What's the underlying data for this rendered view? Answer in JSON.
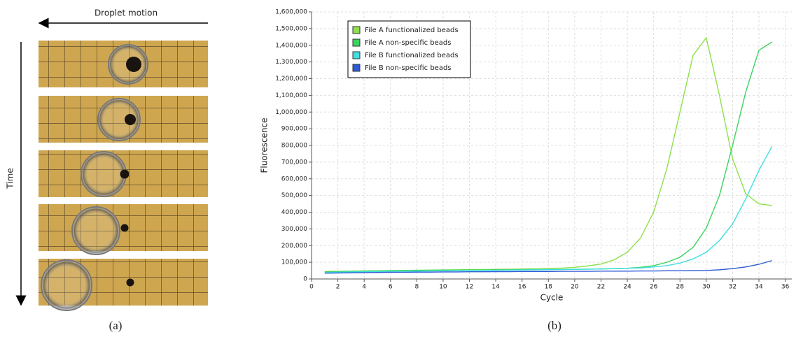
{
  "panel_a": {
    "motion_label": "Droplet motion",
    "time_label": "Time",
    "caption": "(a)"
  },
  "panel_b": {
    "caption": "(b)"
  },
  "chart_data": {
    "type": "line",
    "xlabel": "Cycle",
    "ylabel": "Fluorescence",
    "grid": true,
    "legend": "upper-left",
    "x": [
      1,
      2,
      3,
      4,
      5,
      6,
      7,
      8,
      9,
      10,
      11,
      12,
      13,
      14,
      15,
      16,
      17,
      18,
      19,
      20,
      21,
      22,
      23,
      24,
      25,
      26,
      27,
      28,
      29,
      30,
      31,
      32,
      33,
      34,
      35
    ],
    "xlim": [
      0,
      36.5
    ],
    "xticks": [
      0,
      2,
      4,
      6,
      8,
      10,
      12,
      14,
      16,
      18,
      20,
      22,
      24,
      26,
      28,
      30,
      32,
      34,
      36
    ],
    "ylim": [
      0,
      1600000
    ],
    "yticks": [
      {
        "value": 0,
        "label": "0"
      },
      {
        "value": 100000,
        "label": "100,000"
      },
      {
        "value": 200000,
        "label": "200,000"
      },
      {
        "value": 300000,
        "label": "300,000"
      },
      {
        "value": 400000,
        "label": "400,000"
      },
      {
        "value": 500000,
        "label": "500,000"
      },
      {
        "value": 600000,
        "label": "600,000"
      },
      {
        "value": 700000,
        "label": "700,000"
      },
      {
        "value": 800000,
        "label": "800,000"
      },
      {
        "value": 900000,
        "label": "900,000"
      },
      {
        "value": 1000000,
        "label": "1,000,000"
      },
      {
        "value": 1100000,
        "label": "1,100,000"
      },
      {
        "value": 1200000,
        "label": "1,200,000"
      },
      {
        "value": 1300000,
        "label": "1,300,000"
      },
      {
        "value": 1400000,
        "label": "1,400,000"
      },
      {
        "value": 1500000,
        "label": "1,500,000"
      },
      {
        "value": 1600000,
        "label": "1,600,000"
      }
    ],
    "series": [
      {
        "name": "File A functionalized beads",
        "color": "#8ee04c",
        "values": [
          45000,
          46000,
          47000,
          48000,
          49000,
          50000,
          51000,
          52000,
          53000,
          54000,
          55000,
          56000,
          57000,
          58000,
          59000,
          60000,
          61000,
          63000,
          65000,
          70000,
          78000,
          90000,
          115000,
          160000,
          245000,
          400000,
          660000,
          1000000,
          1340000,
          1445000,
          1100000,
          720000,
          510000,
          450000,
          440000
        ]
      },
      {
        "name": "File A non-specific beads",
        "color": "#3bd45e",
        "values": [
          42000,
          44000,
          46000,
          48000,
          49000,
          50000,
          51000,
          52000,
          52000,
          53000,
          53000,
          54000,
          54000,
          55000,
          55000,
          56000,
          56000,
          57000,
          57000,
          58000,
          59000,
          60000,
          62000,
          64000,
          70000,
          80000,
          100000,
          130000,
          190000,
          305000,
          500000,
          800000,
          1120000,
          1370000,
          1420000
        ]
      },
      {
        "name": "File B functionalized beads",
        "color": "#40dede",
        "values": [
          38000,
          40000,
          42000,
          43000,
          44000,
          45000,
          46000,
          47000,
          48000,
          49000,
          50000,
          51000,
          51000,
          52000,
          53000,
          54000,
          55000,
          56000,
          57000,
          58000,
          59000,
          60000,
          62000,
          64000,
          66000,
          72000,
          80000,
          95000,
          120000,
          160000,
          230000,
          330000,
          480000,
          650000,
          795000
        ]
      },
      {
        "name": "File B non-specific beads",
        "color": "#2d5bd6",
        "values": [
          35000,
          36000,
          37000,
          38000,
          39000,
          40000,
          40000,
          41000,
          41000,
          42000,
          42000,
          43000,
          43000,
          44000,
          44000,
          45000,
          45000,
          45000,
          46000,
          46000,
          46000,
          47000,
          47000,
          47000,
          48000,
          48000,
          49000,
          49000,
          50000,
          51000,
          55000,
          62000,
          72000,
          88000,
          110000
        ]
      }
    ]
  }
}
